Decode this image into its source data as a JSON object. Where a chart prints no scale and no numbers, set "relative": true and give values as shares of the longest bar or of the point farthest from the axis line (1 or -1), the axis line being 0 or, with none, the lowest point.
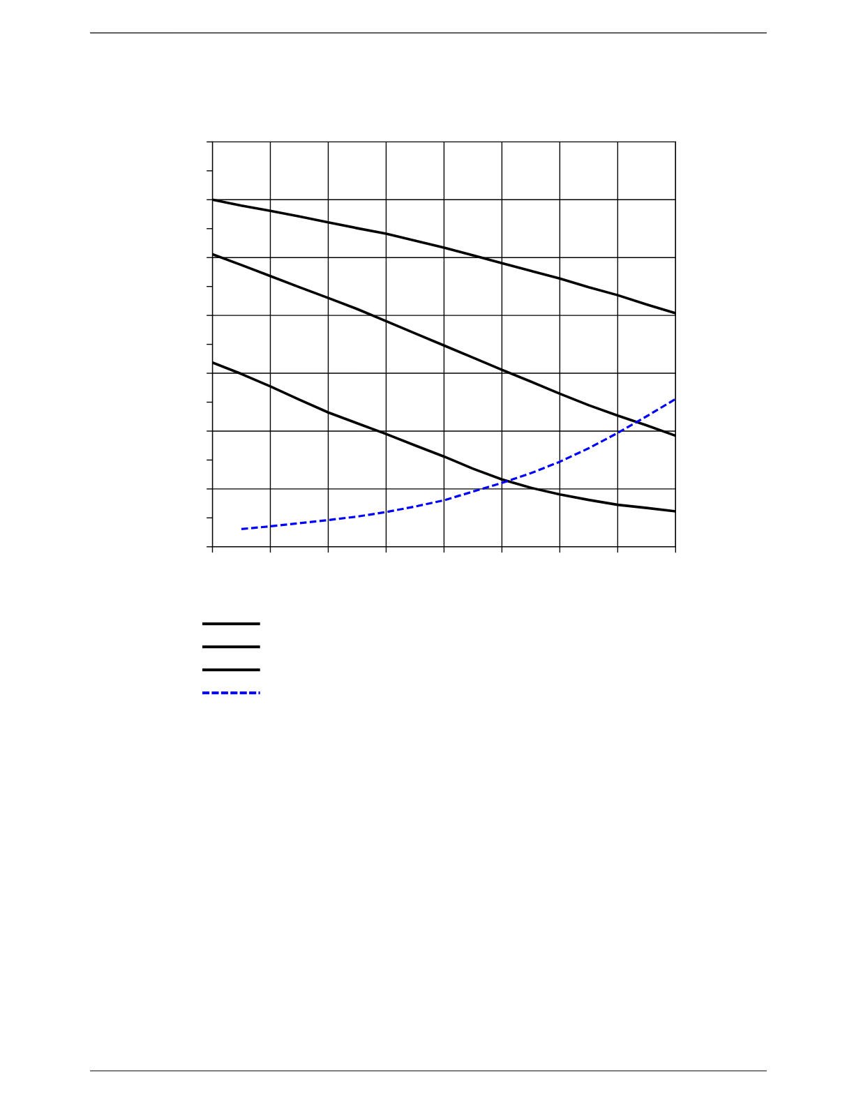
{
  "chart_data": {
    "type": "line",
    "relative": true,
    "grid": true,
    "tick_labels": false,
    "line_style": "solid",
    "categories": [
      null,
      null,
      null,
      null,
      null,
      null,
      null,
      null,
      null,
      null,
      null,
      null,
      null,
      null,
      null,
      null,
      null
    ],
    "series": [
      {
        "color": "#000000",
        "values": [
          1.0,
          0.983,
          0.968,
          0.952,
          0.935,
          0.918,
          0.902,
          0.882,
          0.862,
          0.84,
          0.817,
          0.795,
          0.773,
          0.748,
          0.725,
          0.698,
          0.673
        ]
      },
      {
        "color": "#000000",
        "values": [
          0.843,
          0.812,
          0.78,
          0.748,
          0.717,
          0.685,
          0.65,
          0.615,
          0.58,
          0.545,
          0.51,
          0.476,
          0.441,
          0.408,
          0.378,
          0.35,
          0.32
        ]
      },
      {
        "color": "#000000",
        "values": [
          0.531,
          0.498,
          0.462,
          0.424,
          0.387,
          0.356,
          0.325,
          0.292,
          0.26,
          0.225,
          0.194,
          0.17,
          0.151,
          0.135,
          0.121,
          0.112,
          0.102
        ]
      },
      {
        "color": "#0000ff",
        "line_style": "dashed",
        "values": [
          null,
          0.051,
          0.059,
          0.068,
          0.077,
          0.087,
          0.1,
          0.116,
          0.134,
          0.159,
          0.184,
          0.212,
          0.245,
          0.284,
          0.328,
          0.376,
          0.426
        ]
      }
    ]
  }
}
